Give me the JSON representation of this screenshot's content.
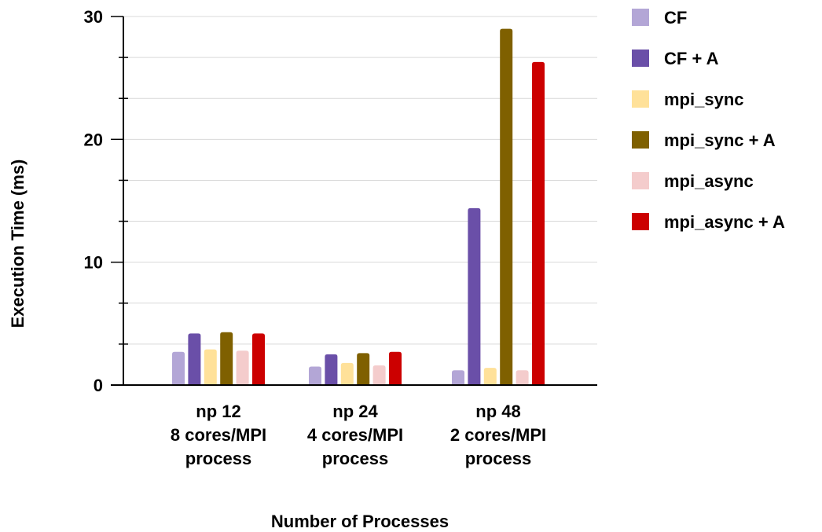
{
  "chart_data": {
    "type": "bar",
    "categories": [
      [
        "np 12",
        "8 cores/MPI",
        "process"
      ],
      [
        "np 24",
        "4 cores/MPI",
        "process"
      ],
      [
        "np 48",
        "2 cores/MPI",
        "process"
      ]
    ],
    "series": [
      {
        "name": "CF",
        "color": "#b3a6d6",
        "values": [
          2.7,
          1.5,
          1.2
        ]
      },
      {
        "name": "CF + A",
        "color": "#6a4fa8",
        "values": [
          4.2,
          2.5,
          14.4
        ]
      },
      {
        "name": "mpi_sync",
        "color": "#ffe199",
        "values": [
          2.9,
          1.8,
          1.4
        ]
      },
      {
        "name": "mpi_sync + A",
        "color": "#7f6000",
        "values": [
          4.3,
          2.6,
          29.0
        ]
      },
      {
        "name": "mpi_async",
        "color": "#f4cccc",
        "values": [
          2.8,
          1.6,
          1.2
        ]
      },
      {
        "name": "mpi_async + A",
        "color": "#cc0000",
        "values": [
          4.2,
          2.7,
          26.3
        ]
      }
    ],
    "title": "",
    "xlabel": "Number of Processes",
    "ylabel": "Execution Time (ms)",
    "ylim": [
      0,
      30
    ],
    "yticks": [
      0,
      10,
      20,
      30
    ],
    "grid": true,
    "legend_position": "right"
  }
}
